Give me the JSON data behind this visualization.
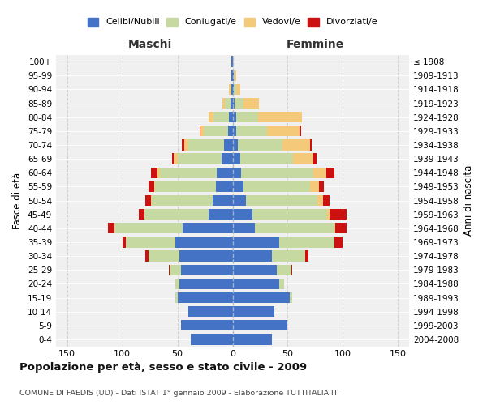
{
  "age_groups": [
    "0-4",
    "5-9",
    "10-14",
    "15-19",
    "20-24",
    "25-29",
    "30-34",
    "35-39",
    "40-44",
    "45-49",
    "50-54",
    "55-59",
    "60-64",
    "65-69",
    "70-74",
    "75-79",
    "80-84",
    "85-89",
    "90-94",
    "95-99",
    "100+"
  ],
  "birth_years": [
    "2004-2008",
    "1999-2003",
    "1994-1998",
    "1989-1993",
    "1984-1988",
    "1979-1983",
    "1974-1978",
    "1969-1973",
    "1964-1968",
    "1959-1963",
    "1954-1958",
    "1949-1953",
    "1944-1948",
    "1939-1943",
    "1934-1938",
    "1929-1933",
    "1924-1928",
    "1919-1923",
    "1914-1918",
    "1909-1913",
    "≤ 1908"
  ],
  "colors": {
    "celibi": "#4472c4",
    "coniugati": "#c5d9a0",
    "vedovi": "#f5c97a",
    "divorziati": "#cc1111"
  },
  "males": {
    "celibi": [
      38,
      47,
      40,
      50,
      48,
      47,
      48,
      52,
      45,
      22,
      18,
      15,
      14,
      10,
      8,
      4,
      3,
      2,
      1,
      1,
      1
    ],
    "coniugati": [
      0,
      0,
      0,
      2,
      4,
      10,
      28,
      45,
      62,
      58,
      55,
      55,
      52,
      40,
      32,
      22,
      14,
      5,
      1,
      0,
      0
    ],
    "vedovi": [
      0,
      0,
      0,
      0,
      0,
      0,
      0,
      0,
      0,
      0,
      1,
      1,
      2,
      3,
      4,
      3,
      5,
      2,
      1,
      0,
      0
    ],
    "divorziati": [
      0,
      0,
      0,
      0,
      0,
      1,
      3,
      3,
      6,
      5,
      5,
      5,
      6,
      2,
      2,
      1,
      0,
      0,
      0,
      0,
      0
    ]
  },
  "females": {
    "celibi": [
      36,
      50,
      38,
      52,
      42,
      40,
      36,
      42,
      20,
      18,
      12,
      10,
      8,
      7,
      5,
      3,
      3,
      2,
      1,
      1,
      0
    ],
    "coniugati": [
      0,
      0,
      0,
      2,
      5,
      13,
      30,
      50,
      72,
      68,
      65,
      60,
      65,
      48,
      40,
      28,
      20,
      8,
      2,
      1,
      0
    ],
    "vedovi": [
      0,
      0,
      0,
      0,
      0,
      0,
      0,
      0,
      1,
      2,
      5,
      8,
      12,
      18,
      25,
      30,
      40,
      14,
      4,
      1,
      1
    ],
    "divorziati": [
      0,
      0,
      0,
      0,
      0,
      1,
      3,
      8,
      10,
      15,
      6,
      5,
      7,
      3,
      2,
      1,
      0,
      0,
      0,
      0,
      0
    ]
  },
  "xlim": 160,
  "title": "Popolazione per età, sesso e stato civile - 2009",
  "subtitle": "COMUNE DI FAEDIS (UD) - Dati ISTAT 1° gennaio 2009 - Elaborazione TUTTITALIA.IT",
  "xlabel_left": "Maschi",
  "xlabel_right": "Femmine",
  "ylabel_left": "Fasce di età",
  "ylabel_right": "Anni di nascita",
  "legend_labels": [
    "Celibi/Nubili",
    "Coniugati/e",
    "Vedovi/e",
    "Divorziati/e"
  ],
  "background_color": "#ffffff",
  "plot_bg": "#f0f0f0",
  "grid_color": "#cccccc"
}
